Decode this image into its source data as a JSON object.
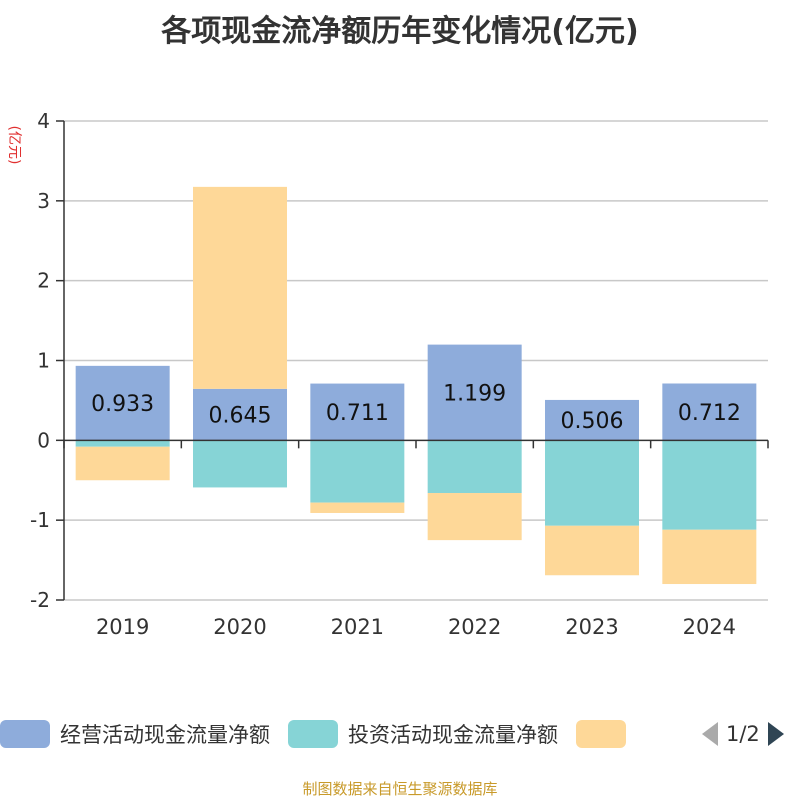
{
  "chart_data": {
    "type": "bar",
    "stacked": true,
    "title": "各项现金流净额历年变化情况(亿元)",
    "ylabel": "(亿元)",
    "categories": [
      "2019",
      "2020",
      "2021",
      "2022",
      "2023",
      "2024"
    ],
    "ylim": [
      -2,
      4
    ],
    "yticks": [
      4,
      3,
      2,
      1,
      0,
      -1,
      -2
    ],
    "grid": true,
    "legend_position": "bottom",
    "series": [
      {
        "name": "经营活动现金流量净额",
        "color": "#8eacdb",
        "values": [
          0.933,
          0.645,
          0.711,
          1.199,
          0.506,
          0.712
        ]
      },
      {
        "name": "投资活动现金流量净额",
        "color": "#86d4d6",
        "values": [
          -0.08,
          -0.59,
          -0.78,
          -0.66,
          -1.07,
          -1.12
        ]
      },
      {
        "name": "",
        "color": "#fed898",
        "values": [
          -0.42,
          2.53,
          -0.13,
          -0.59,
          -0.62,
          -0.68
        ]
      }
    ],
    "data_labels": [
      "0.933",
      "0.645",
      "0.711",
      "1.199",
      "0.506",
      "0.712"
    ]
  },
  "legend": {
    "pager": "1/2",
    "prev_icon": "triangle-left-icon",
    "next_icon": "triangle-right-icon"
  },
  "source_text": "制图数据来自恒生聚源数据库"
}
